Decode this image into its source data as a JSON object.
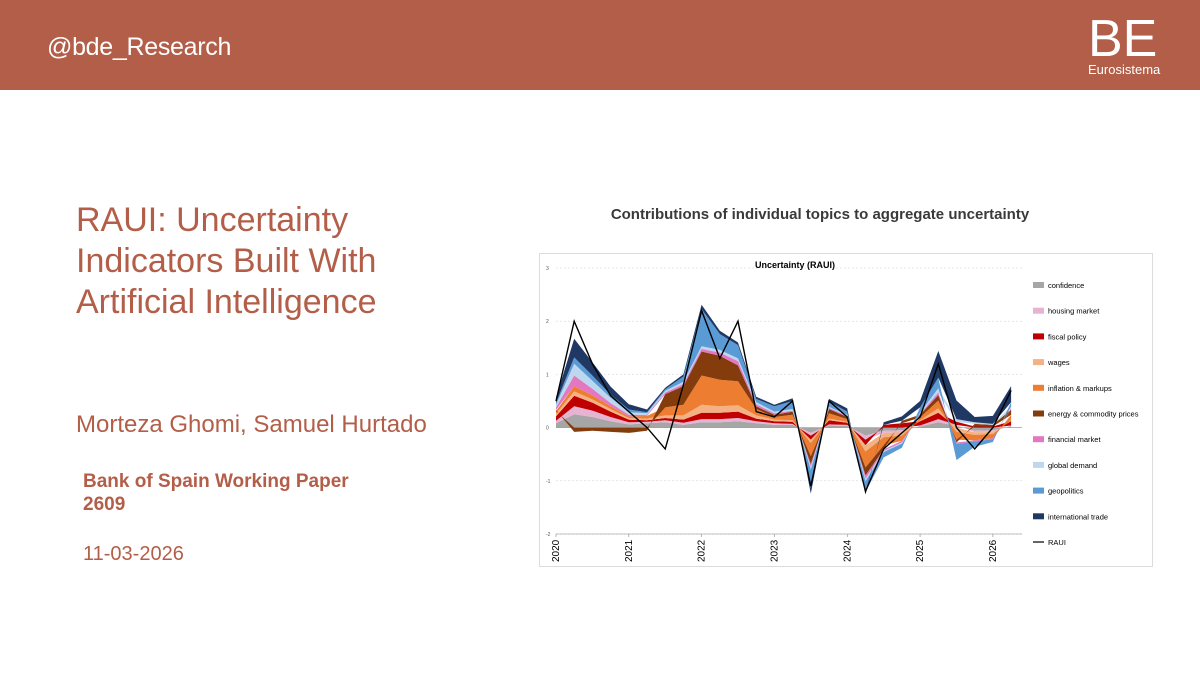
{
  "colors": {
    "brand": "#b35e48",
    "header_text": "#ffffff",
    "body_text": "#b35e48"
  },
  "header": {
    "handle": "@bde_Research",
    "logo_letters": "BE",
    "logo_subtitle": "Eurosistema"
  },
  "paper": {
    "title_lines": [
      "RAUI: Uncertainty",
      "Indicators Built With",
      "Artificial Intelligence"
    ],
    "authors": "Morteza Ghomi, Samuel Hurtado",
    "series_line1": "Bank of Spain Working Paper",
    "series_line2": "2609",
    "date": "11-03-2026"
  },
  "chart_heading": "Contributions of individual topics to aggregate uncertainty",
  "chart_data": {
    "type": "area",
    "stacking": "stacked-diverging",
    "title": "Uncertainty (RAUI)",
    "xlabel": "",
    "ylabel": "",
    "ylim": [
      -2,
      3
    ],
    "yticks": [
      "-2",
      "-1",
      "0",
      "1",
      "2",
      "3"
    ],
    "xticks": [
      "2020",
      "2021",
      "2022",
      "2023",
      "2024",
      "2025",
      "2026"
    ],
    "grid": true,
    "legend_position": "right",
    "x": [
      2020.0,
      2020.25,
      2020.5,
      2020.75,
      2021.0,
      2021.25,
      2021.5,
      2021.75,
      2022.0,
      2022.25,
      2022.5,
      2022.75,
      2023.0,
      2023.25,
      2023.5,
      2023.75,
      2024.0,
      2024.25,
      2024.5,
      2024.75,
      2025.0,
      2025.25,
      2025.5,
      2025.75,
      2026.0,
      2026.25
    ],
    "series": [
      {
        "name": "confidence",
        "color": "#a6a6a6",
        "values": [
          0.08,
          0.25,
          0.2,
          0.12,
          0.06,
          0.08,
          0.1,
          0.05,
          0.1,
          0.1,
          0.12,
          0.08,
          0.05,
          0.05,
          -0.1,
          0.04,
          0.03,
          -0.15,
          -0.06,
          -0.05,
          0.02,
          0.1,
          0.03,
          -0.06,
          -0.05,
          0.02
        ]
      },
      {
        "name": "housing market",
        "color": "#e6b4d2",
        "values": [
          0.05,
          0.15,
          0.12,
          0.08,
          0.04,
          0.03,
          0.04,
          0.04,
          0.06,
          0.06,
          0.06,
          0.04,
          0.03,
          0.02,
          -0.05,
          0.02,
          0.02,
          -0.08,
          -0.04,
          -0.04,
          0.02,
          0.06,
          0.02,
          -0.03,
          -0.03,
          0.02
        ]
      },
      {
        "name": "fiscal policy",
        "color": "#c00000",
        "values": [
          0.08,
          0.2,
          0.15,
          0.1,
          0.05,
          0.03,
          0.04,
          0.06,
          0.12,
          0.12,
          0.12,
          0.05,
          0.04,
          0.04,
          -0.08,
          0.08,
          0.04,
          -0.1,
          0.05,
          0.08,
          0.08,
          0.12,
          0.06,
          0.02,
          0.02,
          0.08
        ]
      },
      {
        "name": "wages",
        "color": "#f4b183",
        "values": [
          0.05,
          0.08,
          0.06,
          0.05,
          0.03,
          0.03,
          0.05,
          0.08,
          0.15,
          0.12,
          0.12,
          0.06,
          0.03,
          0.03,
          -0.06,
          0.03,
          0.02,
          -0.12,
          -0.08,
          -0.06,
          0.02,
          0.08,
          -0.08,
          -0.05,
          -0.04,
          0.02
        ]
      },
      {
        "name": "inflation & markups",
        "color": "#ed7d31",
        "values": [
          0.05,
          0.1,
          0.08,
          0.05,
          0.03,
          0.05,
          0.15,
          0.2,
          0.55,
          0.5,
          0.45,
          0.12,
          0.05,
          0.1,
          -0.25,
          0.1,
          0.05,
          -0.3,
          -0.15,
          -0.1,
          0.05,
          0.15,
          -0.15,
          -0.1,
          -0.08,
          0.1
        ]
      },
      {
        "name": "energy & commodity prices",
        "color": "#843c0c",
        "values": [
          0.02,
          -0.08,
          -0.06,
          -0.08,
          -0.1,
          -0.06,
          0.25,
          0.35,
          0.45,
          0.45,
          0.3,
          0.05,
          0.04,
          0.06,
          -0.15,
          0.08,
          0.04,
          -0.15,
          -0.08,
          0.05,
          0.05,
          0.1,
          -0.05,
          0.05,
          0.03,
          0.1
        ]
      },
      {
        "name": "financial market",
        "color": "#e377c2",
        "values": [
          0.05,
          0.2,
          0.12,
          0.06,
          0.03,
          0.02,
          0.03,
          0.04,
          0.05,
          0.06,
          0.08,
          0.04,
          0.03,
          0.02,
          -0.05,
          0.02,
          0.02,
          -0.06,
          -0.03,
          -0.03,
          0.02,
          0.05,
          -0.03,
          -0.02,
          -0.02,
          0.02
        ]
      },
      {
        "name": "global demand",
        "color": "#bdd7ee",
        "values": [
          0.05,
          0.22,
          0.15,
          0.1,
          0.05,
          0.03,
          0.03,
          0.04,
          0.05,
          0.05,
          0.05,
          0.04,
          0.03,
          0.03,
          -0.05,
          0.02,
          0.02,
          -0.05,
          -0.02,
          -0.02,
          0.02,
          0.08,
          0.05,
          0.03,
          0.02,
          0.04
        ]
      },
      {
        "name": "geopolitics",
        "color": "#5b9bd5",
        "values": [
          0.03,
          0.12,
          0.1,
          0.06,
          0.05,
          0.02,
          0.03,
          0.1,
          0.7,
          0.3,
          0.25,
          0.06,
          0.1,
          0.15,
          -0.35,
          0.1,
          0.06,
          -0.2,
          -0.1,
          -0.08,
          0.1,
          0.2,
          -0.3,
          -0.1,
          -0.05,
          0.08
        ]
      },
      {
        "name": "international trade",
        "color": "#1f3864",
        "values": [
          0.1,
          0.35,
          0.25,
          0.15,
          0.1,
          0.05,
          0.03,
          0.04,
          0.08,
          0.06,
          0.05,
          0.04,
          0.03,
          0.05,
          -0.1,
          0.05,
          0.06,
          -0.05,
          0.05,
          0.08,
          0.12,
          0.5,
          0.35,
          0.1,
          0.15,
          0.3
        ]
      }
    ],
    "line": {
      "name": "RAUI",
      "color": "#000000",
      "values": [
        0.5,
        2.0,
        1.2,
        0.6,
        0.3,
        0.0,
        -0.4,
        0.8,
        2.2,
        1.3,
        2.0,
        0.3,
        0.2,
        0.5,
        -1.1,
        0.5,
        0.2,
        -1.2,
        -0.4,
        -0.1,
        0.2,
        1.2,
        0.0,
        -0.4,
        0.0,
        0.7
      ]
    }
  }
}
